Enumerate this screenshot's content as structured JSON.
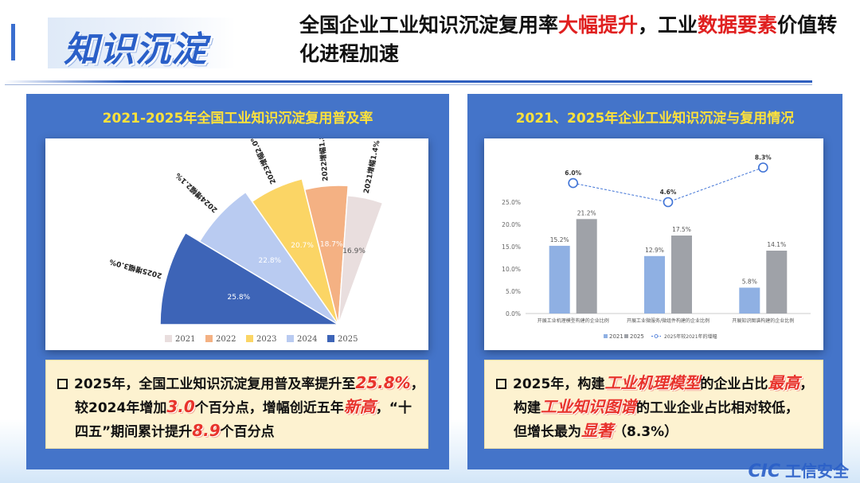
{
  "header": {
    "topic": "知识沉淀",
    "headline_parts": [
      {
        "text": "全国企业工业知识沉淀复用率",
        "red": false
      },
      {
        "text": "大幅提升",
        "red": true
      },
      {
        "text": "，工业",
        "red": false
      },
      {
        "text": "数据要素",
        "red": true
      },
      {
        "text": "价值转化进程加速",
        "red": false
      }
    ]
  },
  "left_panel": {
    "title": "2021-2025年全国工业知识沉淀复用普及率",
    "note_lines": [
      [
        {
          "t": "2025年，全国工业知识沉淀复用普及率提升至"
        },
        {
          "t": "25.8%",
          "em": true
        },
        {
          "t": "，"
        }
      ],
      [
        {
          "t": "较2024年增加"
        },
        {
          "t": "3.0",
          "em": true
        },
        {
          "t": "个百分点，增幅创近五年"
        },
        {
          "t": "新高",
          "em": true
        },
        {
          "t": "，“十"
        }
      ],
      [
        {
          "t": "四五”期间累计提升"
        },
        {
          "t": "8.9",
          "em": true
        },
        {
          "t": "个百分点"
        }
      ]
    ]
  },
  "right_panel": {
    "title": "2021、2025年企业工业知识沉淀与复用情况",
    "note_lines": [
      [
        {
          "t": "2025年，构建"
        },
        {
          "t": "工业机理模型",
          "em": true
        },
        {
          "t": "的企业占比"
        },
        {
          "t": "最高",
          "em": true
        },
        {
          "t": "，"
        }
      ],
      [
        {
          "t": "构建"
        },
        {
          "t": "工业知识图谱",
          "em": true
        },
        {
          "t": "的工业企业占比相对较低，"
        }
      ],
      [
        {
          "t": "但增长最为"
        },
        {
          "t": "显著",
          "em": true
        },
        {
          "t": "（8.3%）"
        }
      ]
    ]
  },
  "logo": {
    "mark": "CIC",
    "name": "工信安全"
  },
  "chart_data": [
    {
      "type": "pie",
      "subtype": "fan",
      "title": "2021-2025年全国工业知识沉淀复用普及率",
      "legend_position": "bottom",
      "slices": [
        {
          "year": "2025",
          "value": 25.8,
          "label": "2025增幅3.0%",
          "color": "#3d64b7"
        },
        {
          "year": "2024",
          "value": 22.8,
          "label": "2024增幅2.1%",
          "color": "#b9cbf1"
        },
        {
          "year": "2023",
          "value": 20.7,
          "label": "2023增幅2.0%",
          "color": "#fbd565"
        },
        {
          "year": "2022",
          "value": 18.7,
          "label": "2022增幅1.8%",
          "color": "#f4b183"
        },
        {
          "year": "2021",
          "value": 16.9,
          "label": "2021增幅1.4%",
          "color": "#e9dede"
        }
      ],
      "legend": [
        "2021",
        "2022",
        "2023",
        "2024",
        "2025"
      ]
    },
    {
      "type": "bar",
      "title": "2021、2025年企业工业知识沉淀与复用情况",
      "categories": [
        "开展工业机理模型构建的企业比例",
        "开展工业微服务/微组件构建的企业比例",
        "开展知识图谱构建的企业比例"
      ],
      "series": [
        {
          "name": "2021",
          "values": [
            15.2,
            12.9,
            5.8
          ],
          "color": "#8fb0e3"
        },
        {
          "name": "2025",
          "values": [
            21.2,
            17.5,
            14.1
          ],
          "color": "#9fa2a8"
        },
        {
          "name": "2025年较2021年的增幅",
          "type": "line",
          "values": [
            6.0,
            4.6,
            8.3
          ],
          "color": "#3f73d6"
        }
      ],
      "y_ticks": [
        "0.0%",
        "5.0%",
        "10.0%",
        "15.0%",
        "20.0%",
        "25.0%"
      ],
      "ylim": [
        0,
        25
      ],
      "grid": false,
      "legend_position": "bottom"
    }
  ]
}
